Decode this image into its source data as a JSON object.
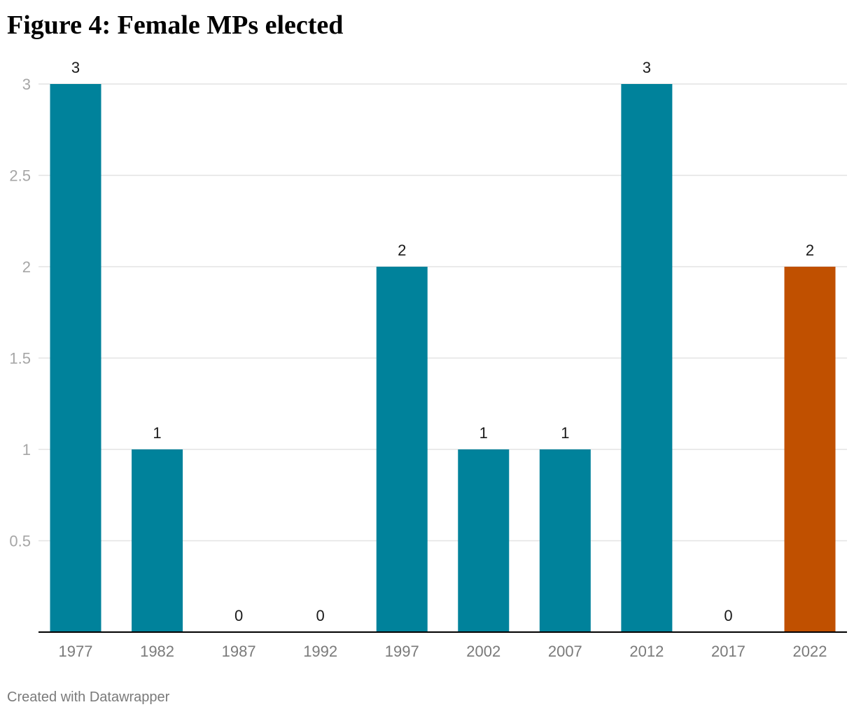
{
  "title": "Figure 4: Female MPs elected",
  "footer": "Created with Datawrapper",
  "chart_data": {
    "type": "bar",
    "title": "Figure 4: Female MPs elected",
    "xlabel": "",
    "ylabel": "",
    "categories": [
      "1977",
      "1982",
      "1987",
      "1992",
      "1997",
      "2002",
      "2007",
      "2012",
      "2017",
      "2022"
    ],
    "values": [
      3,
      1,
      0,
      0,
      2,
      1,
      1,
      3,
      0,
      2
    ],
    "value_labels": [
      "3",
      "1",
      "0",
      "0",
      "2",
      "1",
      "1",
      "3",
      "0",
      "2"
    ],
    "ylim": [
      0,
      3
    ],
    "yticks": [
      0.5,
      1,
      1.5,
      2,
      2.5,
      3
    ],
    "ytick_labels": [
      "0.5",
      "1",
      "1.5",
      "2",
      "2.5",
      "3"
    ],
    "grid": true,
    "bar_colors": [
      "#00829b",
      "#00829b",
      "#00829b",
      "#00829b",
      "#00829b",
      "#00829b",
      "#00829b",
      "#00829b",
      "#00829b",
      "#c05000"
    ],
    "colors": {
      "default_bar": "#00829b",
      "highlight_bar": "#c05000",
      "gridline": "#e3e3e3",
      "baseline": "#000000"
    }
  }
}
